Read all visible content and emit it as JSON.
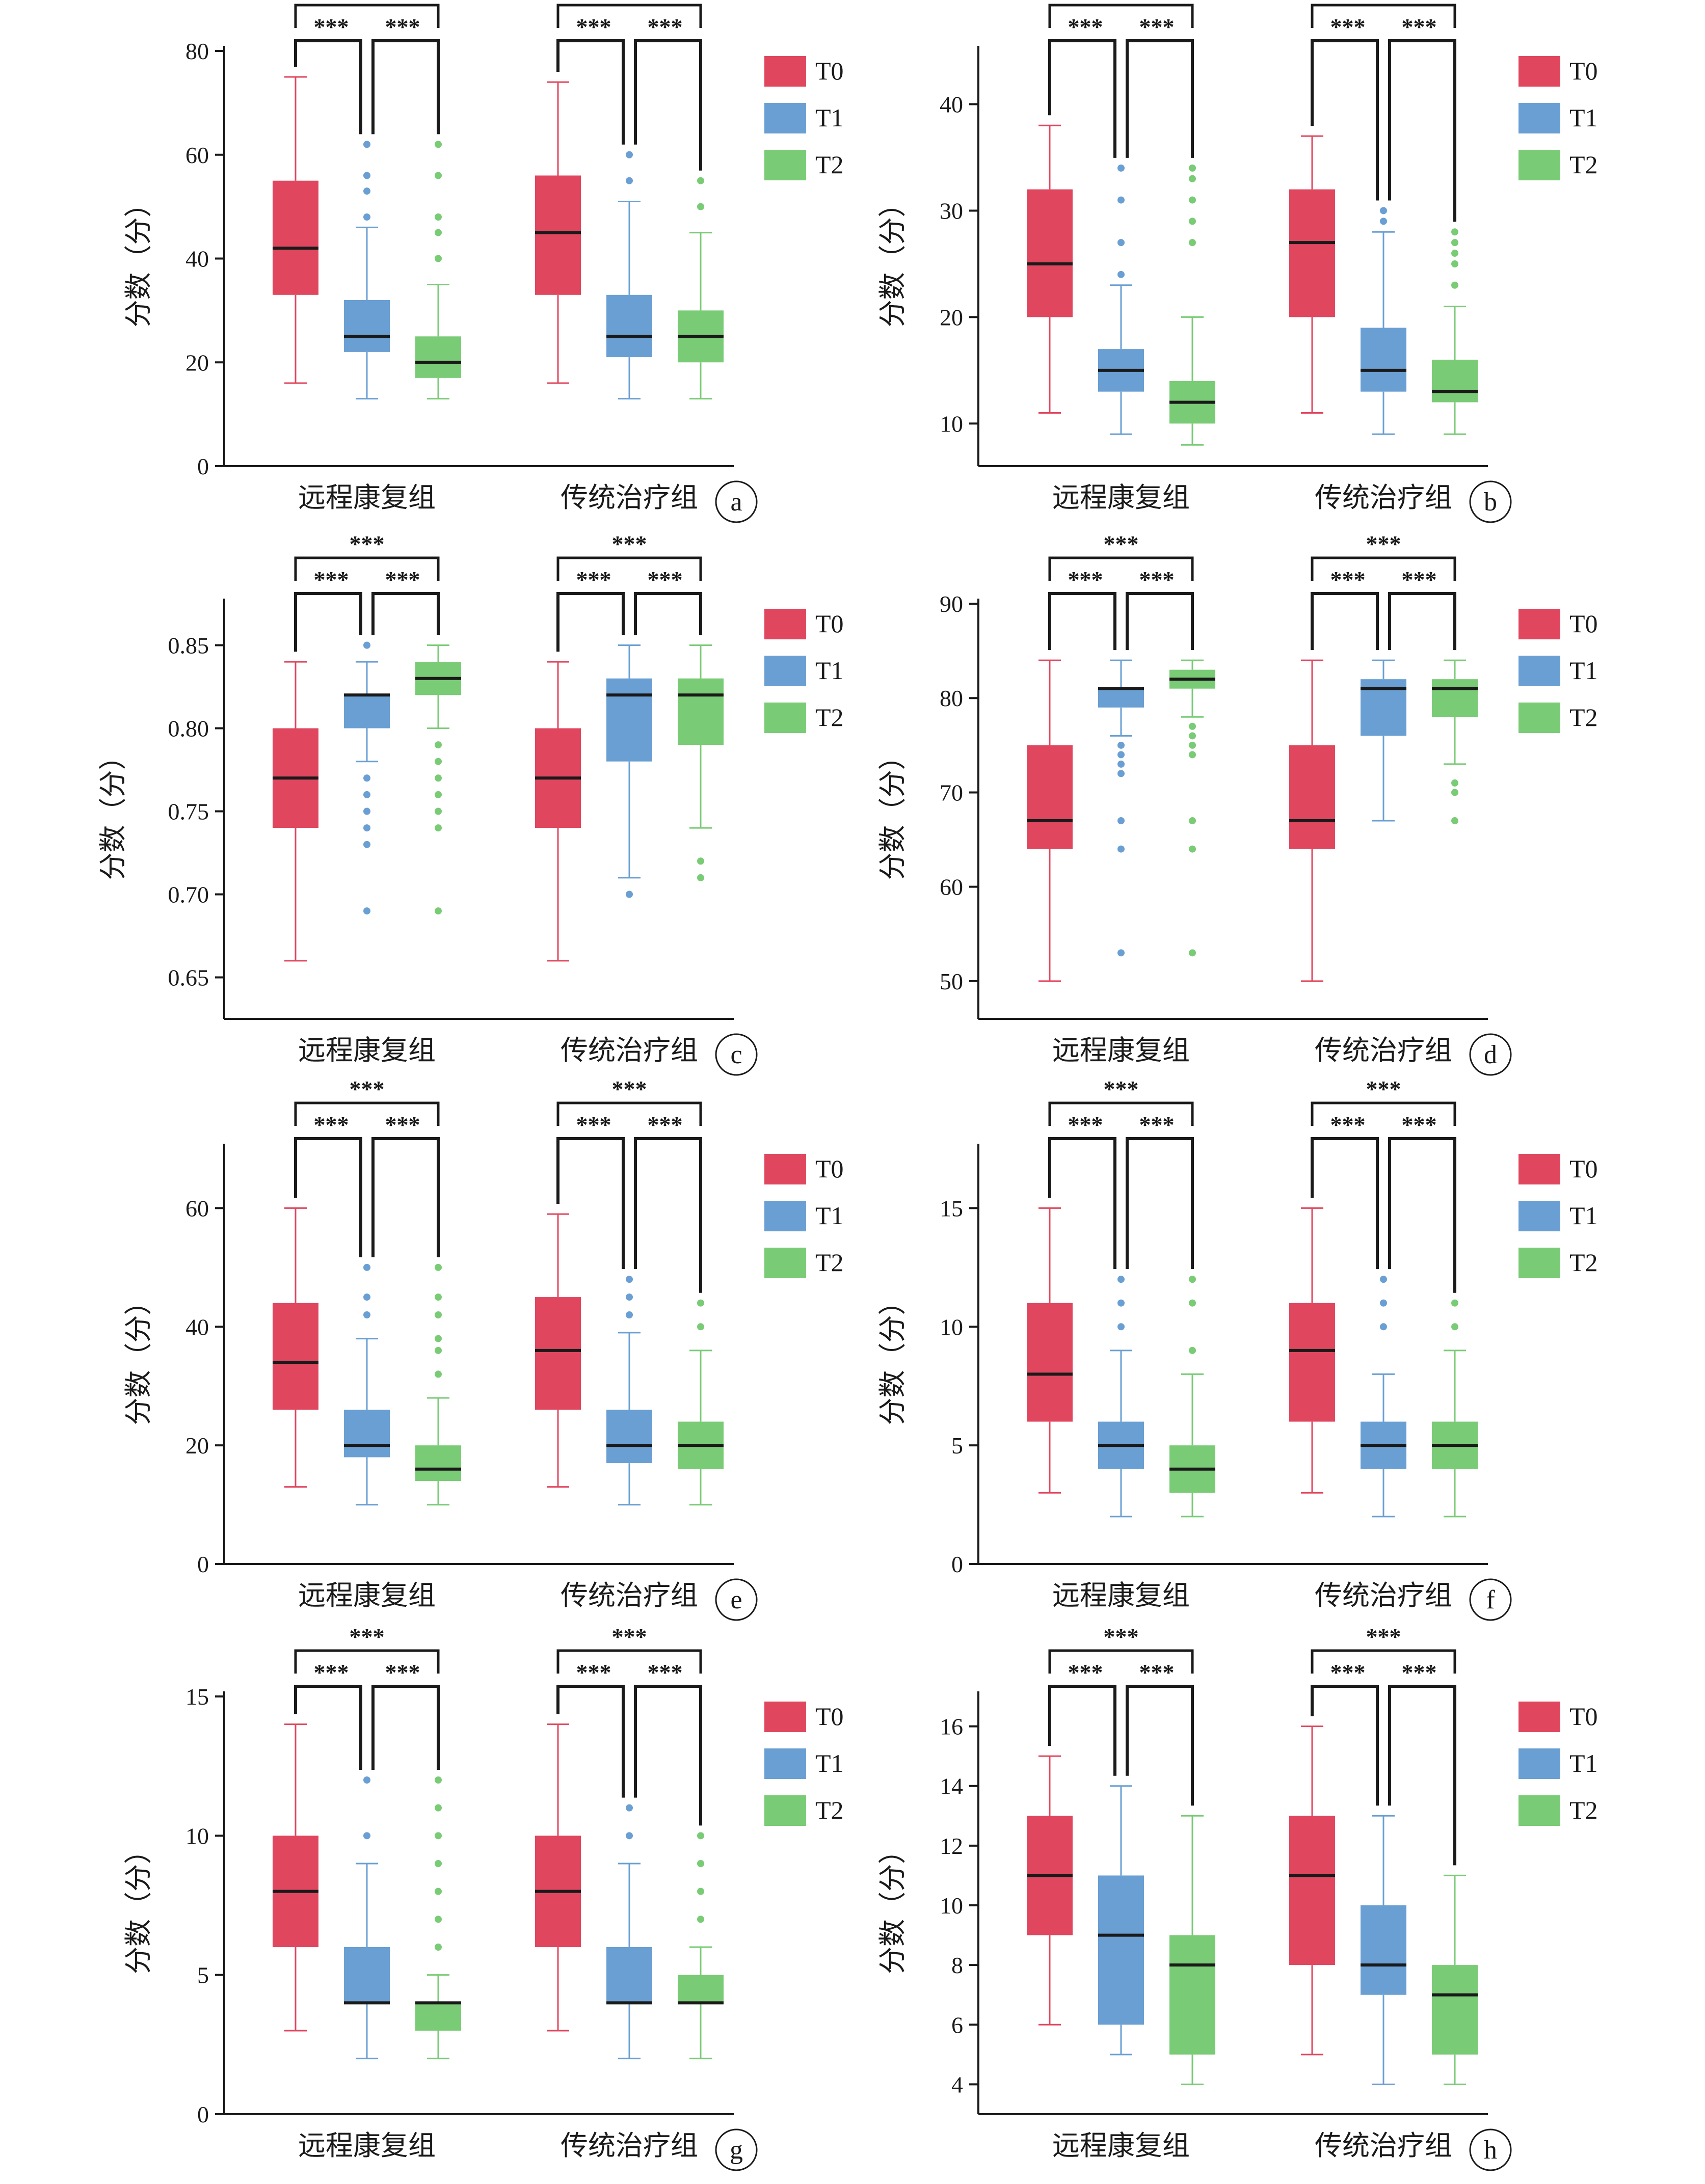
{
  "figure": {
    "colors": {
      "T0": "#e0475f",
      "T1": "#6a9fd3",
      "T2": "#79cb75",
      "median": "#1a1a1a",
      "axis": "#1a1a1a"
    },
    "legend": [
      "T0",
      "T1",
      "T2"
    ],
    "groups": [
      "远程康复组",
      "传统治疗组"
    ],
    "significance_label": "***"
  },
  "chart_data": [
    {
      "panel": "a",
      "type": "box",
      "ylabel": "分数（分）",
      "ylim": [
        0,
        80
      ],
      "yticks": [
        "0",
        "20",
        "40",
        "60",
        "80"
      ],
      "tick_values": [
        0,
        20,
        40,
        60,
        80
      ],
      "groups": [
        {
          "name": "远程康复组",
          "boxes": [
            {
              "series": "T0",
              "min": 16,
              "q1": 33,
              "median": 42,
              "q3": 55,
              "max": 75,
              "outliers": []
            },
            {
              "series": "T1",
              "min": 13,
              "q1": 22,
              "median": 25,
              "q3": 32,
              "max": 46,
              "outliers": [
                48,
                53,
                56,
                62
              ]
            },
            {
              "series": "T2",
              "min": 13,
              "q1": 17,
              "median": 20,
              "q3": 25,
              "max": 35,
              "outliers": [
                40,
                45,
                48,
                56,
                62
              ]
            }
          ]
        },
        {
          "name": "传统治疗组",
          "boxes": [
            {
              "series": "T0",
              "min": 16,
              "q1": 33,
              "median": 45,
              "q3": 56,
              "max": 74,
              "outliers": []
            },
            {
              "series": "T1",
              "min": 13,
              "q1": 21,
              "median": 25,
              "q3": 33,
              "max": 51,
              "outliers": [
                55,
                60
              ]
            },
            {
              "series": "T2",
              "min": 13,
              "q1": 20,
              "median": 25,
              "q3": 30,
              "max": 45,
              "outliers": [
                50,
                55
              ]
            }
          ]
        }
      ]
    },
    {
      "panel": "b",
      "type": "box",
      "ylabel": "分数（分）",
      "ylim": [
        6,
        45
      ],
      "yticks": [
        "10",
        "20",
        "30",
        "40"
      ],
      "tick_values": [
        10,
        20,
        30,
        40
      ],
      "groups": [
        {
          "name": "远程康复组",
          "boxes": [
            {
              "series": "T0",
              "min": 11,
              "q1": 20,
              "median": 25,
              "q3": 32,
              "max": 38,
              "outliers": []
            },
            {
              "series": "T1",
              "min": 9,
              "q1": 13,
              "median": 15,
              "q3": 17,
              "max": 23,
              "outliers": [
                24,
                27,
                31,
                34
              ]
            },
            {
              "series": "T2",
              "min": 8,
              "q1": 10,
              "median": 12,
              "q3": 14,
              "max": 20,
              "outliers": [
                27,
                29,
                31,
                33,
                34
              ]
            }
          ]
        },
        {
          "name": "传统治疗组",
          "boxes": [
            {
              "series": "T0",
              "min": 11,
              "q1": 20,
              "median": 27,
              "q3": 32,
              "max": 37,
              "outliers": []
            },
            {
              "series": "T1",
              "min": 9,
              "q1": 13,
              "median": 15,
              "q3": 19,
              "max": 28,
              "outliers": [
                29,
                30
              ]
            },
            {
              "series": "T2",
              "min": 9,
              "q1": 12,
              "median": 13,
              "q3": 16,
              "max": 21,
              "outliers": [
                23,
                25,
                26,
                27,
                28
              ]
            }
          ]
        }
      ]
    },
    {
      "panel": "c",
      "type": "box",
      "ylabel": "分数（分）",
      "ylim": [
        0.625,
        0.875
      ],
      "yticks": [
        "0.65",
        "0.70",
        "0.75",
        "0.80",
        "0.85"
      ],
      "tick_values": [
        0.65,
        0.7,
        0.75,
        0.8,
        0.85
      ],
      "groups": [
        {
          "name": "远程康复组",
          "boxes": [
            {
              "series": "T0",
              "min": 0.66,
              "q1": 0.74,
              "median": 0.77,
              "q3": 0.8,
              "max": 0.84,
              "outliers": []
            },
            {
              "series": "T1",
              "min": 0.78,
              "q1": 0.8,
              "median": 0.82,
              "q3": 0.82,
              "max": 0.84,
              "outliers": [
                0.69,
                0.73,
                0.74,
                0.75,
                0.76,
                0.77,
                0.85
              ]
            },
            {
              "series": "T2",
              "min": 0.8,
              "q1": 0.82,
              "median": 0.83,
              "q3": 0.84,
              "max": 0.85,
              "outliers": [
                0.69,
                0.74,
                0.75,
                0.76,
                0.77,
                0.78,
                0.79
              ]
            }
          ]
        },
        {
          "name": "传统治疗组",
          "boxes": [
            {
              "series": "T0",
              "min": 0.66,
              "q1": 0.74,
              "median": 0.77,
              "q3": 0.8,
              "max": 0.84,
              "outliers": []
            },
            {
              "series": "T1",
              "min": 0.71,
              "q1": 0.78,
              "median": 0.82,
              "q3": 0.83,
              "max": 0.85,
              "outliers": [
                0.7
              ]
            },
            {
              "series": "T2",
              "min": 0.74,
              "q1": 0.79,
              "median": 0.82,
              "q3": 0.83,
              "max": 0.85,
              "outliers": [
                0.71,
                0.72
              ]
            }
          ]
        }
      ]
    },
    {
      "panel": "d",
      "type": "box",
      "ylabel": "分数（分）",
      "ylim": [
        46,
        90
      ],
      "yticks": [
        "50",
        "60",
        "70",
        "80",
        "90"
      ],
      "tick_values": [
        50,
        60,
        70,
        80,
        90
      ],
      "groups": [
        {
          "name": "远程康复组",
          "boxes": [
            {
              "series": "T0",
              "min": 50,
              "q1": 64,
              "median": 67,
              "q3": 75,
              "max": 84,
              "outliers": []
            },
            {
              "series": "T1",
              "min": 76,
              "q1": 79,
              "median": 81,
              "q3": 81,
              "max": 84,
              "outliers": [
                53,
                64,
                67,
                72,
                73,
                74,
                75
              ]
            },
            {
              "series": "T2",
              "min": 78,
              "q1": 81,
              "median": 82,
              "q3": 83,
              "max": 84,
              "outliers": [
                53,
                64,
                67,
                74,
                75,
                76,
                77
              ]
            }
          ]
        },
        {
          "name": "传统治疗组",
          "boxes": [
            {
              "series": "T0",
              "min": 50,
              "q1": 64,
              "median": 67,
              "q3": 75,
              "max": 84,
              "outliers": []
            },
            {
              "series": "T1",
              "min": 67,
              "q1": 76,
              "median": 81,
              "q3": 82,
              "max": 84,
              "outliers": []
            },
            {
              "series": "T2",
              "min": 73,
              "q1": 78,
              "median": 81,
              "q3": 82,
              "max": 84,
              "outliers": [
                67,
                70,
                71
              ]
            }
          ]
        }
      ]
    },
    {
      "panel": "e",
      "type": "box",
      "ylabel": "分数（分）",
      "ylim": [
        0,
        70
      ],
      "yticks": [
        "0",
        "20",
        "40",
        "60"
      ],
      "tick_values": [
        0,
        20,
        40,
        60
      ],
      "groups": [
        {
          "name": "远程康复组",
          "boxes": [
            {
              "series": "T0",
              "min": 13,
              "q1": 26,
              "median": 34,
              "q3": 44,
              "max": 60,
              "outliers": []
            },
            {
              "series": "T1",
              "min": 10,
              "q1": 18,
              "median": 20,
              "q3": 26,
              "max": 38,
              "outliers": [
                42,
                45,
                50
              ]
            },
            {
              "series": "T2",
              "min": 10,
              "q1": 14,
              "median": 16,
              "q3": 20,
              "max": 28,
              "outliers": [
                32,
                36,
                38,
                42,
                45,
                50
              ]
            }
          ]
        },
        {
          "name": "传统治疗组",
          "boxes": [
            {
              "series": "T0",
              "min": 13,
              "q1": 26,
              "median": 36,
              "q3": 45,
              "max": 59,
              "outliers": []
            },
            {
              "series": "T1",
              "min": 10,
              "q1": 17,
              "median": 20,
              "q3": 26,
              "max": 39,
              "outliers": [
                42,
                45,
                48
              ]
            },
            {
              "series": "T2",
              "min": 10,
              "q1": 16,
              "median": 20,
              "q3": 24,
              "max": 36,
              "outliers": [
                40,
                44
              ]
            }
          ]
        }
      ]
    },
    {
      "panel": "f",
      "type": "box",
      "ylabel": "分数（分）",
      "ylim": [
        0,
        17.5
      ],
      "yticks": [
        "0",
        "5",
        "10",
        "15"
      ],
      "tick_values": [
        0,
        5,
        10,
        15
      ],
      "groups": [
        {
          "name": "远程康复组",
          "boxes": [
            {
              "series": "T0",
              "min": 3,
              "q1": 6,
              "median": 8,
              "q3": 11,
              "max": 15,
              "outliers": []
            },
            {
              "series": "T1",
              "min": 2,
              "q1": 4,
              "median": 5,
              "q3": 6,
              "max": 9,
              "outliers": [
                10,
                11,
                12
              ]
            },
            {
              "series": "T2",
              "min": 2,
              "q1": 3,
              "median": 4,
              "q3": 5,
              "max": 8,
              "outliers": [
                9,
                11,
                12
              ]
            }
          ]
        },
        {
          "name": "传统治疗组",
          "boxes": [
            {
              "series": "T0",
              "min": 3,
              "q1": 6,
              "median": 9,
              "q3": 11,
              "max": 15,
              "outliers": []
            },
            {
              "series": "T1",
              "min": 2,
              "q1": 4,
              "median": 5,
              "q3": 6,
              "max": 8,
              "outliers": [
                10,
                11,
                12
              ]
            },
            {
              "series": "T2",
              "min": 2,
              "q1": 4,
              "median": 5,
              "q3": 6,
              "max": 9,
              "outliers": [
                10,
                11
              ]
            }
          ]
        }
      ]
    },
    {
      "panel": "g",
      "type": "box",
      "ylabel": "分数（分）",
      "ylim": [
        0,
        15
      ],
      "yticks": [
        "0",
        "5",
        "10",
        "15"
      ],
      "tick_values": [
        0,
        5,
        10,
        15
      ],
      "groups": [
        {
          "name": "远程康复组",
          "boxes": [
            {
              "series": "T0",
              "min": 3,
              "q1": 6,
              "median": 8,
              "q3": 10,
              "max": 14,
              "outliers": []
            },
            {
              "series": "T1",
              "min": 2,
              "q1": 4,
              "median": 4,
              "q3": 6,
              "max": 9,
              "outliers": [
                10,
                12
              ]
            },
            {
              "series": "T2",
              "min": 2,
              "q1": 3,
              "median": 4,
              "q3": 4,
              "max": 5,
              "outliers": [
                6,
                7,
                8,
                9,
                10,
                11,
                12
              ]
            }
          ]
        },
        {
          "name": "传统治疗组",
          "boxes": [
            {
              "series": "T0",
              "min": 3,
              "q1": 6,
              "median": 8,
              "q3": 10,
              "max": 14,
              "outliers": []
            },
            {
              "series": "T1",
              "min": 2,
              "q1": 4,
              "median": 4,
              "q3": 6,
              "max": 9,
              "outliers": [
                10,
                11
              ]
            },
            {
              "series": "T2",
              "min": 2,
              "q1": 4,
              "median": 4,
              "q3": 5,
              "max": 6,
              "outliers": [
                7,
                8,
                9,
                10
              ]
            }
          ]
        }
      ]
    },
    {
      "panel": "h",
      "type": "box",
      "ylabel": "分数（分）",
      "ylim": [
        3,
        17
      ],
      "yticks": [
        "4",
        "6",
        "8",
        "10",
        "12",
        "14",
        "16"
      ],
      "tick_values": [
        4,
        6,
        8,
        10,
        12,
        14,
        16
      ],
      "groups": [
        {
          "name": "远程康复组",
          "boxes": [
            {
              "series": "T0",
              "min": 6,
              "q1": 9,
              "median": 11,
              "q3": 13,
              "max": 15,
              "outliers": []
            },
            {
              "series": "T1",
              "min": 5,
              "q1": 6,
              "median": 9,
              "q3": 11,
              "max": 14,
              "outliers": []
            },
            {
              "series": "T2",
              "min": 4,
              "q1": 5,
              "median": 8,
              "q3": 9,
              "max": 13,
              "outliers": []
            }
          ]
        },
        {
          "name": "传统治疗组",
          "boxes": [
            {
              "series": "T0",
              "min": 5,
              "q1": 8,
              "median": 11,
              "q3": 13,
              "max": 16,
              "outliers": []
            },
            {
              "series": "T1",
              "min": 4,
              "q1": 7,
              "median": 8,
              "q3": 10,
              "max": 13,
              "outliers": []
            },
            {
              "series": "T2",
              "min": 4,
              "q1": 5,
              "median": 7,
              "q3": 8,
              "max": 11,
              "outliers": []
            }
          ]
        }
      ]
    }
  ]
}
